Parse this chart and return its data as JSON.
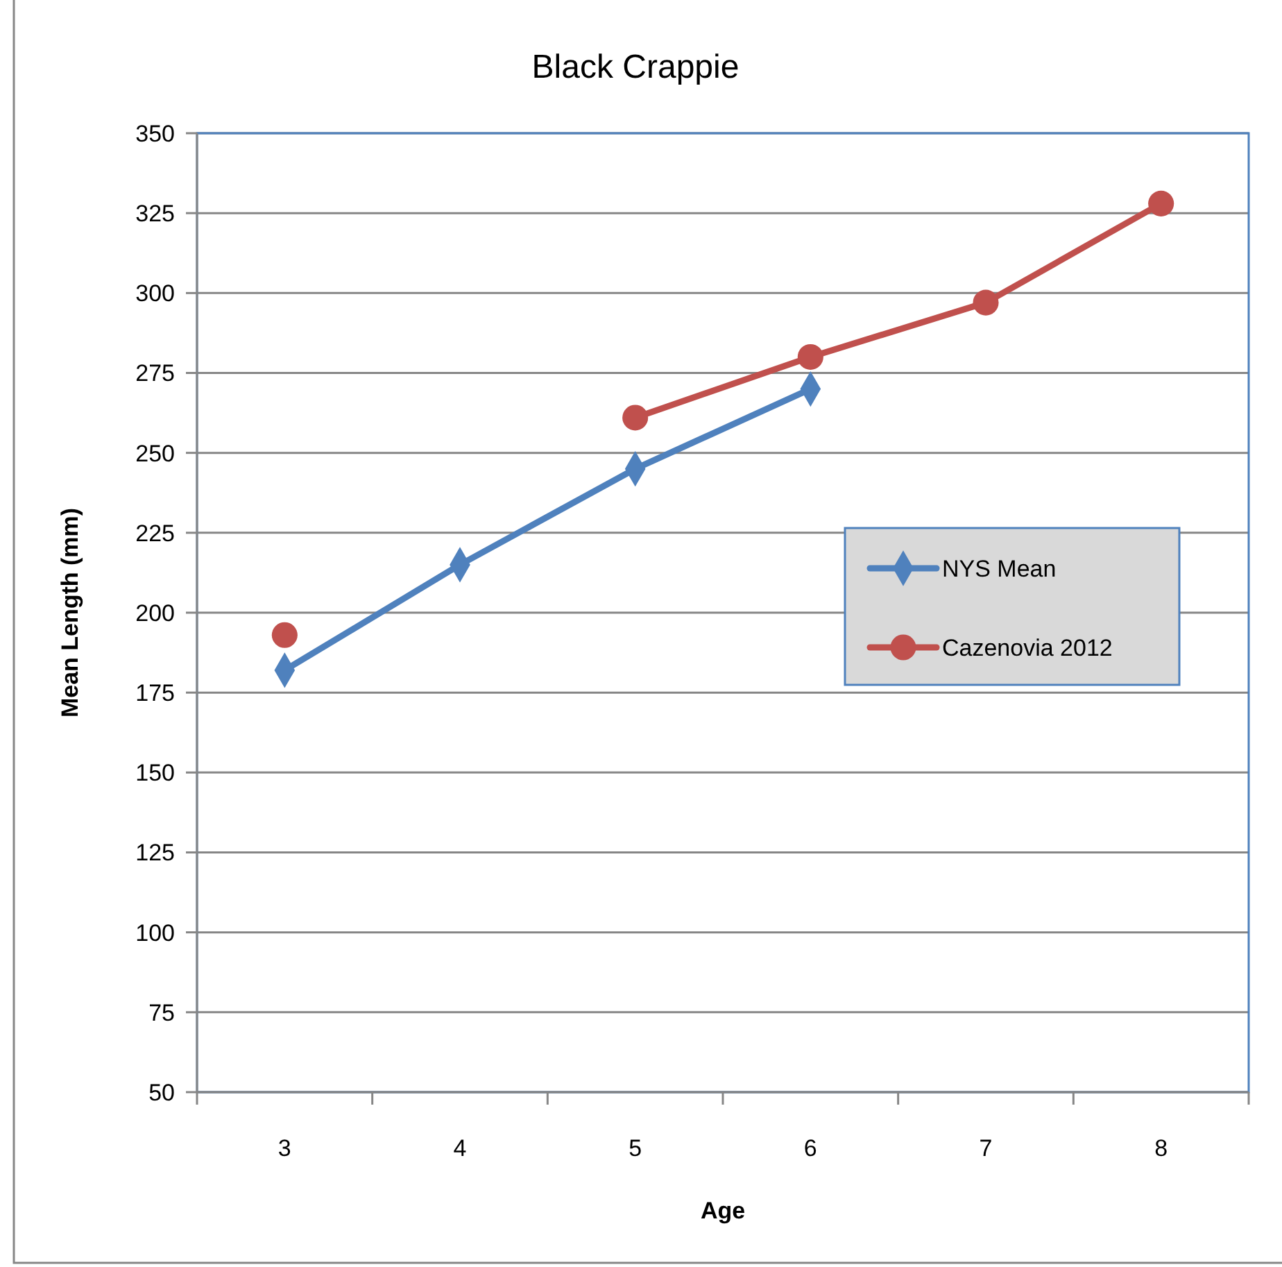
{
  "chart_data": {
    "type": "line",
    "title": "Black Crappie",
    "xlabel": "Age",
    "ylabel": "Mean Length (mm)",
    "categories": [
      "3",
      "4",
      "5",
      "6",
      "7",
      "8"
    ],
    "series": [
      {
        "name": "NYS Mean",
        "color": "#4f81bd",
        "marker": "diamond",
        "values": [
          182,
          215,
          245,
          270,
          null,
          null
        ]
      },
      {
        "name": "Cazenovia 2012",
        "color": "#c0504d",
        "marker": "circle",
        "values": [
          193,
          null,
          261,
          280,
          297,
          328
        ]
      }
    ],
    "ylim": [
      50,
      350
    ],
    "yticks": [
      50,
      75,
      100,
      125,
      150,
      175,
      200,
      225,
      250,
      275,
      300,
      325,
      350
    ],
    "grid": "y",
    "legend": "right",
    "line_style": "solid"
  }
}
